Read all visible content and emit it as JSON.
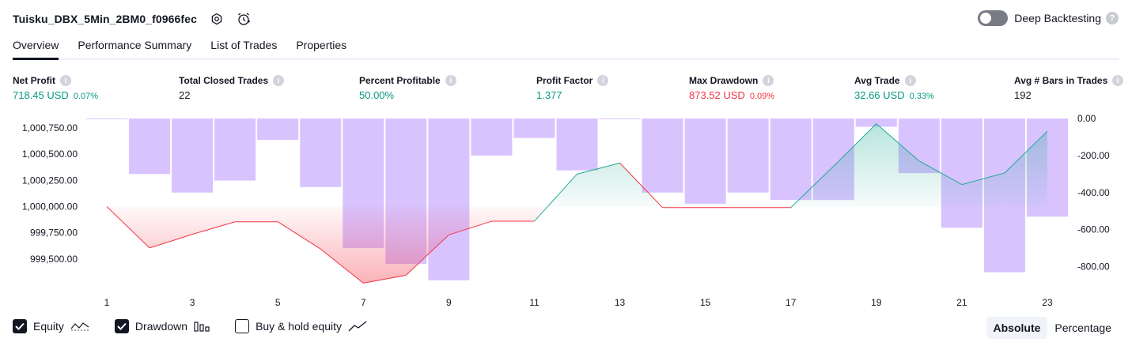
{
  "header": {
    "title": "Tuisku_DBX_5Min_2BM0_f0966fec",
    "icons": [
      "settings-gear-icon",
      "alarm-clock-icon"
    ]
  },
  "deep_backtesting": {
    "label": "Deep Backtesting",
    "help": "?"
  },
  "tabs": [
    {
      "label": "Overview",
      "active": true
    },
    {
      "label": "Performance Summary",
      "active": false
    },
    {
      "label": "List of Trades",
      "active": false
    },
    {
      "label": "Properties",
      "active": false
    }
  ],
  "metrics": [
    {
      "label": "Net Profit",
      "value": "718.45 USD",
      "pct": "0.07%",
      "tone": "green"
    },
    {
      "label": "Total Closed Trades",
      "value": "22",
      "pct": "",
      "tone": "neutral"
    },
    {
      "label": "Percent Profitable",
      "value": "50.00%",
      "pct": "",
      "tone": "green"
    },
    {
      "label": "Profit Factor",
      "value": "1.377",
      "pct": "",
      "tone": "green"
    },
    {
      "label": "Max Drawdown",
      "value": "873.52 USD",
      "pct": "0.09%",
      "tone": "red"
    },
    {
      "label": "Avg Trade",
      "value": "32.66 USD",
      "pct": "0.33%",
      "tone": "green"
    },
    {
      "label": "Avg # Bars in Trades",
      "value": "192",
      "pct": "",
      "tone": "neutral"
    }
  ],
  "chart_data": {
    "type": "line",
    "title": "",
    "x": [
      1,
      2,
      3,
      4,
      5,
      6,
      7,
      8,
      9,
      10,
      11,
      12,
      13,
      14,
      15,
      16,
      17,
      18,
      19,
      20,
      21,
      22,
      23
    ],
    "x_tick_labels": [
      "1",
      "3",
      "5",
      "7",
      "9",
      "11",
      "13",
      "15",
      "17",
      "19",
      "21",
      "23"
    ],
    "equity_baseline": 1000000,
    "series": [
      {
        "name": "Equity",
        "axis": "left",
        "values": [
          1000000,
          999605,
          999735,
          999855,
          999855,
          999595,
          999270,
          999345,
          999730,
          999860,
          999860,
          1000310,
          1000415,
          999990,
          999990,
          999990,
          999990,
          1000385,
          1000790,
          1000435,
          1000210,
          1000320,
          1000718.45
        ]
      },
      {
        "name": "Drawdown",
        "axis": "right",
        "type": "bar",
        "values": [
          0,
          -300,
          -400,
          -335,
          -115,
          -370,
          -700,
          -785,
          -873.52,
          -200,
          -105,
          -280,
          0,
          -400,
          -460,
          -400,
          -440,
          -440,
          -45,
          -295,
          -590,
          -830,
          -530
        ]
      }
    ],
    "left_axis": {
      "ticks": [
        "1,000,750.00",
        "1,000,500.00",
        "1,000,250.00",
        "1,000,000.00",
        "999,750.00",
        "999,500.00"
      ],
      "tick_values": [
        1000750,
        1000500,
        1000250,
        1000000,
        999750,
        999500
      ],
      "range": [
        999250,
        1000840
      ]
    },
    "right_axis": {
      "ticks": [
        "0.00",
        "-200.00",
        "-400.00",
        "-600.00",
        "-800.00"
      ],
      "tick_values": [
        0,
        -200,
        -400,
        -600,
        -800
      ],
      "range": [
        -900,
        0
      ]
    },
    "colors": {
      "profit": "#22ab94",
      "loss": "#f23645",
      "drawdown": "#b388ff"
    }
  },
  "legend": [
    {
      "label": "Equity",
      "checked": true,
      "icon": "equity-line-icon"
    },
    {
      "label": "Drawdown",
      "checked": true,
      "icon": "drawdown-bars-icon"
    },
    {
      "label": "Buy & hold equity",
      "checked": false,
      "icon": "buy-hold-line-icon"
    }
  ],
  "modes": [
    {
      "label": "Absolute",
      "active": true
    },
    {
      "label": "Percentage",
      "active": false
    }
  ]
}
